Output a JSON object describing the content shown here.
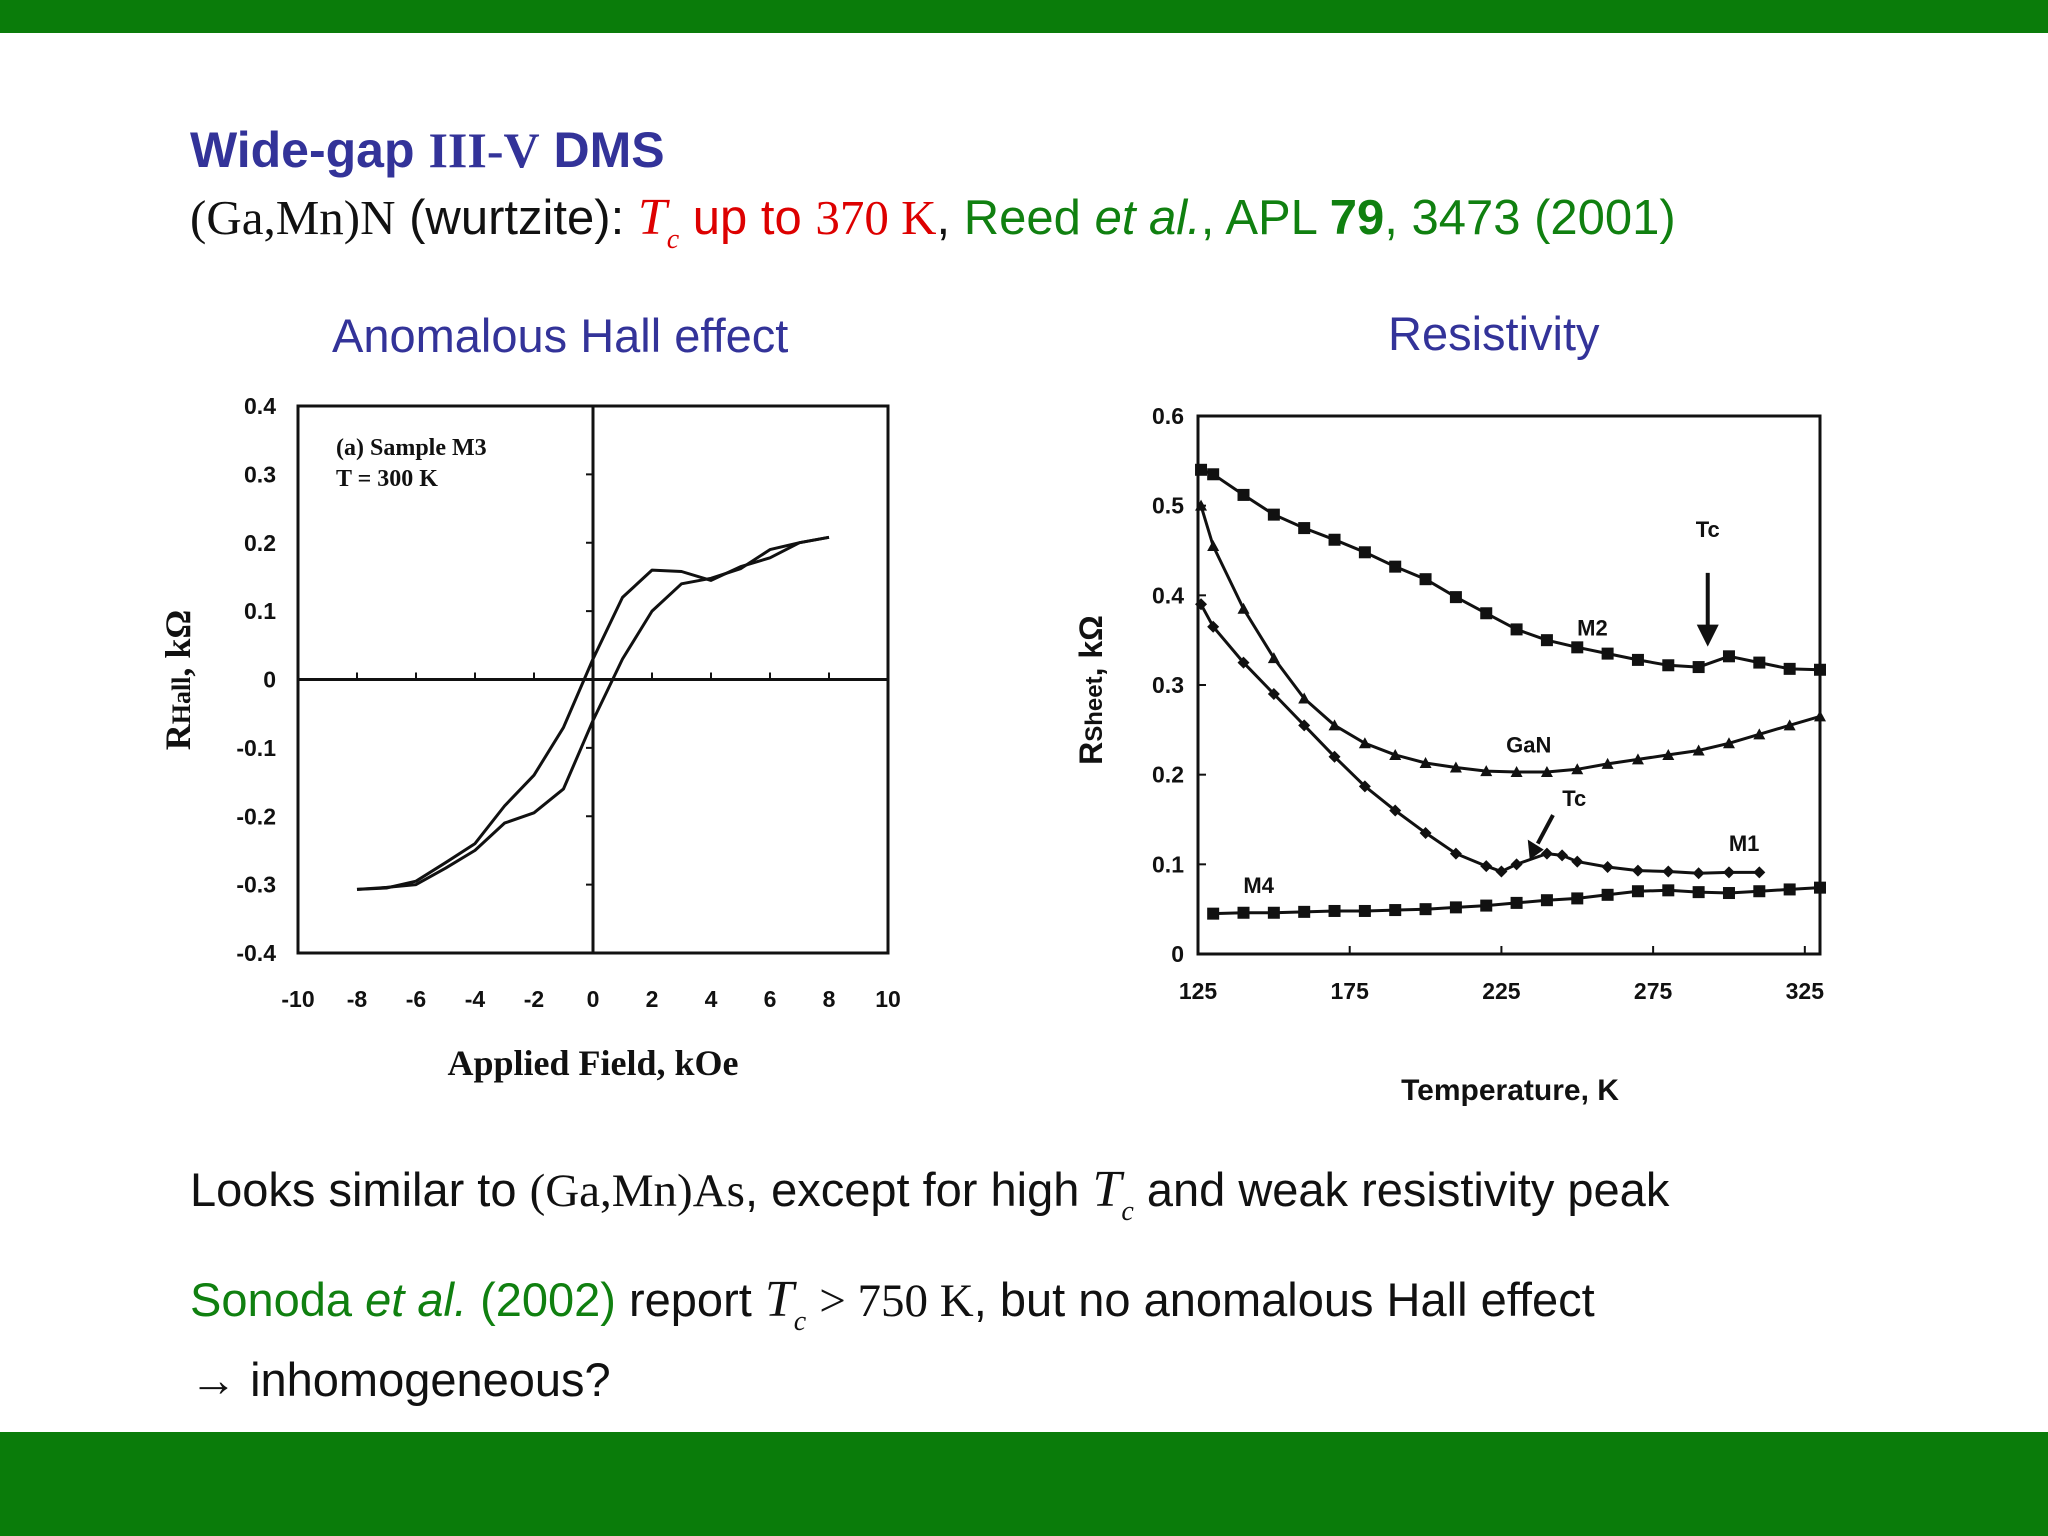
{
  "title": {
    "prefix": "Wide-gap",
    "material": "III-V",
    "suffix": "DMS"
  },
  "subtitle": {
    "compound": "(Ga,Mn)N",
    "structure": "(wurtzite):",
    "tc_symbol": "T",
    "tc_sub": "c",
    "tc_text": "up to",
    "tc_value": "370 K",
    "sep": ",",
    "ref_author": "Reed",
    "ref_etal": "et al.",
    "ref_journal": ", APL",
    "ref_volume": "79",
    "ref_pages": ", 3473 (2001)"
  },
  "captions": {
    "hall": "Anomalous Hall effect",
    "resistivity": "Resistivity"
  },
  "bottom": {
    "line1_a": "Looks similar to",
    "line1_compound": "(Ga,Mn)As",
    "line1_b": ", except for high",
    "line1_tc": "T",
    "line1_tc_sub": "c",
    "line1_c": "and weak resistivity peak",
    "line2_author": "Sonoda",
    "line2_etal": "et al.",
    "line2_year": "(2002)",
    "line2_report": "report",
    "line2_tc": "T",
    "line2_tc_sub": "c",
    "line2_value": "> 750 K",
    "line2_rest": ", but no anomalous Hall effect",
    "line3_arrow": "→",
    "line3_text": "inhomogeneous?"
  },
  "colors": {
    "band": "#0a7c0a",
    "title": "#333399",
    "highlight_red": "#dd0000",
    "reference_green": "#108010"
  },
  "chart_data": [
    {
      "type": "line",
      "annotation_line1": "(a) Sample M3",
      "annotation_line2": "T = 300 K",
      "xlabel": "Applied Field, kOe",
      "ylabel_main": "R",
      "ylabel_sub": "Hall",
      "ylabel_unit": ", kΩ",
      "xlim": [
        -10,
        10
      ],
      "ylim": [
        -0.4,
        0.4
      ],
      "x_ticks": [
        "-10",
        "-8",
        "-6",
        "-4",
        "-2",
        "0",
        "2",
        "4",
        "6",
        "8",
        "10"
      ],
      "y_ticks": [
        "0.4",
        "0.3",
        "0.2",
        "0.1",
        "0",
        "-0.1",
        "-0.2",
        "-0.3",
        "-0.4"
      ],
      "series": [
        {
          "x": [
            -8,
            -7,
            -6,
            -5,
            -4,
            -3,
            -2,
            -1,
            0,
            1,
            2,
            3,
            4,
            5,
            6,
            7,
            8
          ],
          "y": [
            -0.307,
            -0.305,
            -0.295,
            -0.268,
            -0.24,
            -0.185,
            -0.14,
            -0.07,
            0.03,
            0.12,
            0.16,
            0.158,
            0.145,
            0.165,
            0.178,
            0.2,
            0.208
          ]
        },
        {
          "x": [
            -8,
            -7,
            -6,
            -5,
            -4,
            -3,
            -2,
            -1,
            0,
            1,
            2,
            3,
            4,
            5,
            6,
            7,
            8
          ],
          "y": [
            -0.307,
            -0.304,
            -0.3,
            -0.276,
            -0.25,
            -0.21,
            -0.195,
            -0.16,
            -0.06,
            0.03,
            0.1,
            0.14,
            0.148,
            0.162,
            0.19,
            0.2,
            0.208
          ]
        }
      ]
    },
    {
      "type": "line",
      "xlabel": "Temperature, K",
      "ylabel_main": "R",
      "ylabel_sub": "Sheet",
      "ylabel_unit": ", kΩ",
      "xlim": [
        125,
        330
      ],
      "ylim": [
        0,
        0.6
      ],
      "x_ticks": [
        "125",
        "175",
        "225",
        "275",
        "325"
      ],
      "y_ticks": [
        "0.6",
        "0.5",
        "0.4",
        "0.3",
        "0.2",
        "0.1",
        "0"
      ],
      "series": [
        {
          "name": "M2",
          "x": [
            126,
            130,
            140,
            150,
            160,
            170,
            180,
            190,
            200,
            210,
            220,
            230,
            240,
            250,
            260,
            270,
            280,
            290,
            300,
            310,
            320,
            330
          ],
          "y": [
            0.54,
            0.535,
            0.512,
            0.49,
            0.475,
            0.462,
            0.448,
            0.432,
            0.418,
            0.398,
            0.38,
            0.362,
            0.35,
            0.342,
            0.335,
            0.328,
            0.322,
            0.32,
            0.332,
            0.325,
            0.318,
            0.317
          ]
        },
        {
          "name": "GaN",
          "x": [
            126,
            130,
            140,
            150,
            160,
            170,
            180,
            190,
            200,
            210,
            220,
            230,
            240,
            250,
            260,
            270,
            280,
            290,
            300,
            310,
            320,
            330
          ],
          "y": [
            0.5,
            0.455,
            0.385,
            0.33,
            0.285,
            0.255,
            0.235,
            0.222,
            0.213,
            0.208,
            0.204,
            0.203,
            0.203,
            0.206,
            0.212,
            0.217,
            0.222,
            0.227,
            0.235,
            0.245,
            0.255,
            0.265
          ]
        },
        {
          "name": "M1",
          "x": [
            126,
            130,
            140,
            150,
            160,
            170,
            180,
            190,
            200,
            210,
            220,
            225,
            230,
            240,
            245,
            250,
            260,
            270,
            280,
            290,
            300,
            310
          ],
          "y": [
            0.39,
            0.365,
            0.325,
            0.29,
            0.255,
            0.22,
            0.187,
            0.16,
            0.135,
            0.112,
            0.098,
            0.092,
            0.1,
            0.112,
            0.11,
            0.103,
            0.097,
            0.093,
            0.092,
            0.09,
            0.091,
            0.091
          ]
        },
        {
          "name": "M4",
          "x": [
            130,
            140,
            150,
            160,
            170,
            180,
            190,
            200,
            210,
            220,
            230,
            240,
            250,
            260,
            270,
            280,
            290,
            300,
            310,
            320,
            330
          ],
          "y": [
            0.045,
            0.046,
            0.046,
            0.047,
            0.048,
            0.048,
            0.049,
            0.05,
            0.052,
            0.054,
            0.057,
            0.06,
            0.062,
            0.066,
            0.07,
            0.071,
            0.069,
            0.068,
            0.07,
            0.072,
            0.074
          ]
        }
      ],
      "annotations": [
        {
          "text": "Tc",
          "x": 293,
          "y": 0.465
        },
        {
          "text": "Tc",
          "x": 249,
          "y": 0.165
        }
      ]
    }
  ]
}
